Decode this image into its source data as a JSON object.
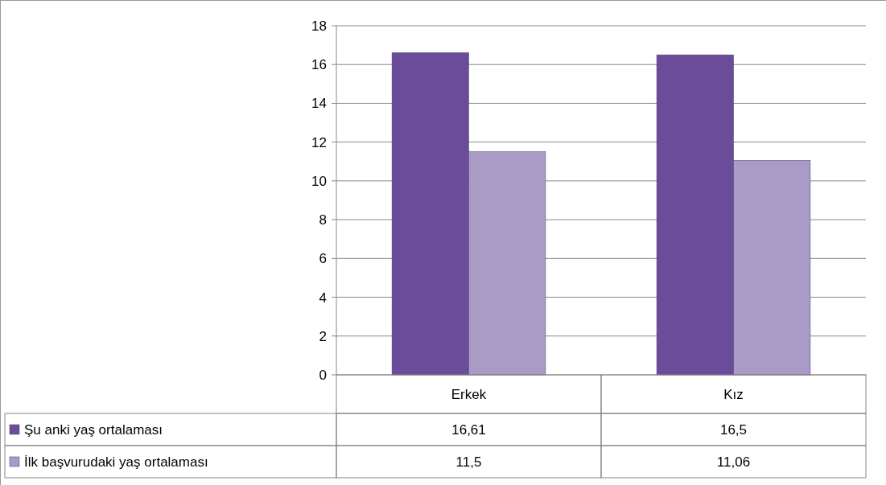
{
  "chart_data": {
    "type": "bar",
    "categories": [
      "Erkek",
      "Kız"
    ],
    "series": [
      {
        "name": "Şu anki yaş ortalaması",
        "color": "#6b4c9a",
        "values": [
          16.61,
          16.5
        ],
        "value_labels": [
          "16,61",
          "16,5"
        ]
      },
      {
        "name": "İlk başvurudaki yaş ortalaması",
        "color": "#a99bc6",
        "values": [
          11.5,
          11.06
        ],
        "value_labels": [
          "11,5",
          "11,06"
        ]
      }
    ],
    "ylim": [
      0,
      18
    ],
    "yticks": [
      0,
      2,
      4,
      6,
      8,
      10,
      12,
      14,
      16,
      18
    ],
    "grid": "y",
    "legend": "bottom"
  }
}
